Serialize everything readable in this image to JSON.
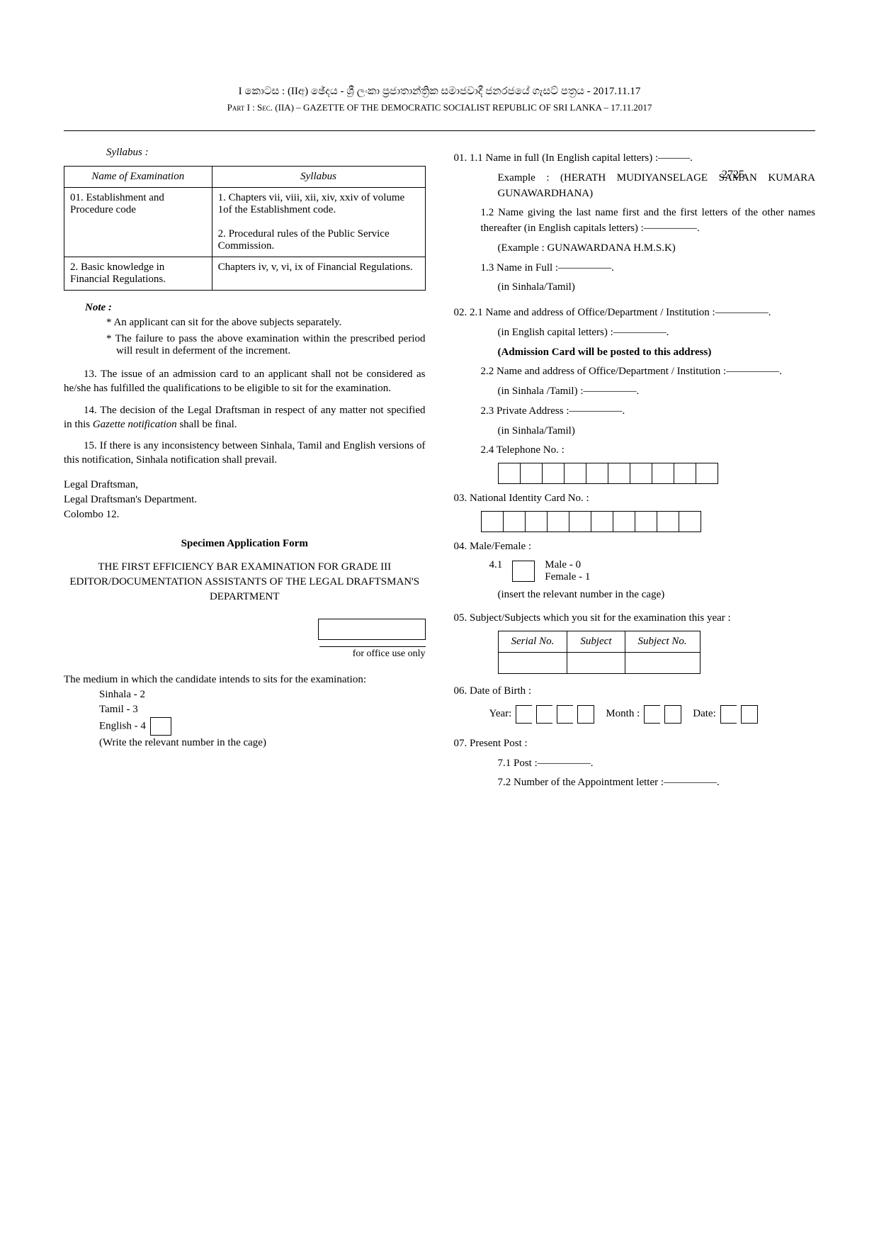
{
  "header": {
    "line1": "I කොටස : (IIඅ) ඡේදය - ශ්‍රී ලංකා ප්‍රජාතාන්ත්‍රික සමාජවාදී ජනරජයේ ගැසට් පත්‍රය - 2017.11.17",
    "line2": "Part I : Sec. (IIA) – GAZETTE OF THE DEMOCRATIC SOCIALIST REPUBLIC OF SRI LANKA – 17.11.2017",
    "page_no": "2725"
  },
  "left": {
    "syllabus_label": "Syllabus :",
    "table": {
      "head_name": "Name of Examination",
      "head_syllabus": "Syllabus",
      "r1c1": "01. Establishment and Procedure code",
      "r1c2": "1. Chapters vii, viii, xii, xiv, xxiv of volume 1of the Establishment code.\n\n2. Procedural rules of the Public Service Commission.",
      "r2c1": "2. Basic knowledge in Financial Regulations.",
      "r2c2": "Chapters iv, v, vi, ix of Financial Regulations."
    },
    "note_label": "Note :",
    "note1": "An applicant can sit for the above subjects separately.",
    "note2": "The failure to pass the above examination within  the prescribed period  will result in deferment of the increment.",
    "p13": "13. The issue of an admission card to an applicant shall not be considered as he/she has fulfilled the qualifications to be eligible to sit for the examination.",
    "p14": "14. The decision of the Legal Draftsman in respect of any matter not specified in this Gazette notification shall be final.",
    "p15": "15. If there is any inconsistency between Sinhala, Tamil and English  versions of this notification, Sinhala notification shall  prevail.",
    "sig1": "Legal Draftsman,",
    "sig2": "Legal Draftsman's Department.",
    "sig3": "Colombo 12.",
    "spec_title": "Specimen Application Form",
    "exam_title": "THE  FIRST EFFICIENCY  BAR EXAMINATION FOR GRADE III EDITOR/DOCUMENTATION ASSISTANTS OF THE  LEGAL DRAFTSMAN'S DEPARTMENT",
    "office_caption": "for office use only",
    "medium_intro": "The medium in which the candidate intends to  sits for the examination:",
    "medium_sinhala": "Sinhala      - 2",
    "medium_tamil": "Tamil         - 3",
    "medium_english": "English      - 4",
    "medium_note": "(Write the relevant number in the cage)"
  },
  "right": {
    "q1_1": "01.  1.1  Name in full  (In English  capital letters) :———.",
    "q1_1_ex": "Example : (HERATH MUDIYANSELAGE SAMAN KUMARA  GUNAWARDHANA)",
    "q1_2": "1.2  Name giving the last name first and the first  letters of the  other names thereafter  (in English  capitals letters) :—————.",
    "q1_2_ex": "(Example : GUNAWARDANA  H.M.S.K)",
    "q1_3a": "1.3 Name in Full :—————.",
    "q1_3b": "(in Sinhala/Tamil)",
    "q2_1a": "02.  2.1 Name  and  address  of  Office/Department  / Institution :—————.",
    "q2_1b": "(in English capital letters) :—————.",
    "q2_1c": "(Admission Card will be posted to this address)",
    "q2_2a": "2.2 Name and address of Office/Department / Institution :—————.",
    "q2_2b": "(in Sinhala /Tamil) :—————.",
    "q2_3a": "2.3 Private Address :—————.",
    "q2_3b": "(in Sinhala/Tamil)",
    "q2_4": "2.4 Telephone No. :",
    "q3": "03.  National Identity Card No. :",
    "q4": "04.  Male/Female :",
    "q4_1": "4.1",
    "q4_male": "Male   - 0",
    "q4_female": "Female - 1",
    "q4_note": "(insert the relevant number in the cage)",
    "q5": "05.  Subject/Subjects which  you sit  for the examination this year :",
    "q5_h1": "Serial No.",
    "q5_h2": "Subject",
    "q5_h3": "Subject No.",
    "q6": "06.  Date of Birth :",
    "q6_year": "Year:",
    "q6_month": "Month :",
    "q6_date": "Date:",
    "q7": "07.  Present Post :",
    "q7_1": "7.1 Post :—————.",
    "q7_2": "7.2 Number of the Appointment letter :—————."
  },
  "box_counts": {
    "telephone": 10,
    "nic": 10
  }
}
